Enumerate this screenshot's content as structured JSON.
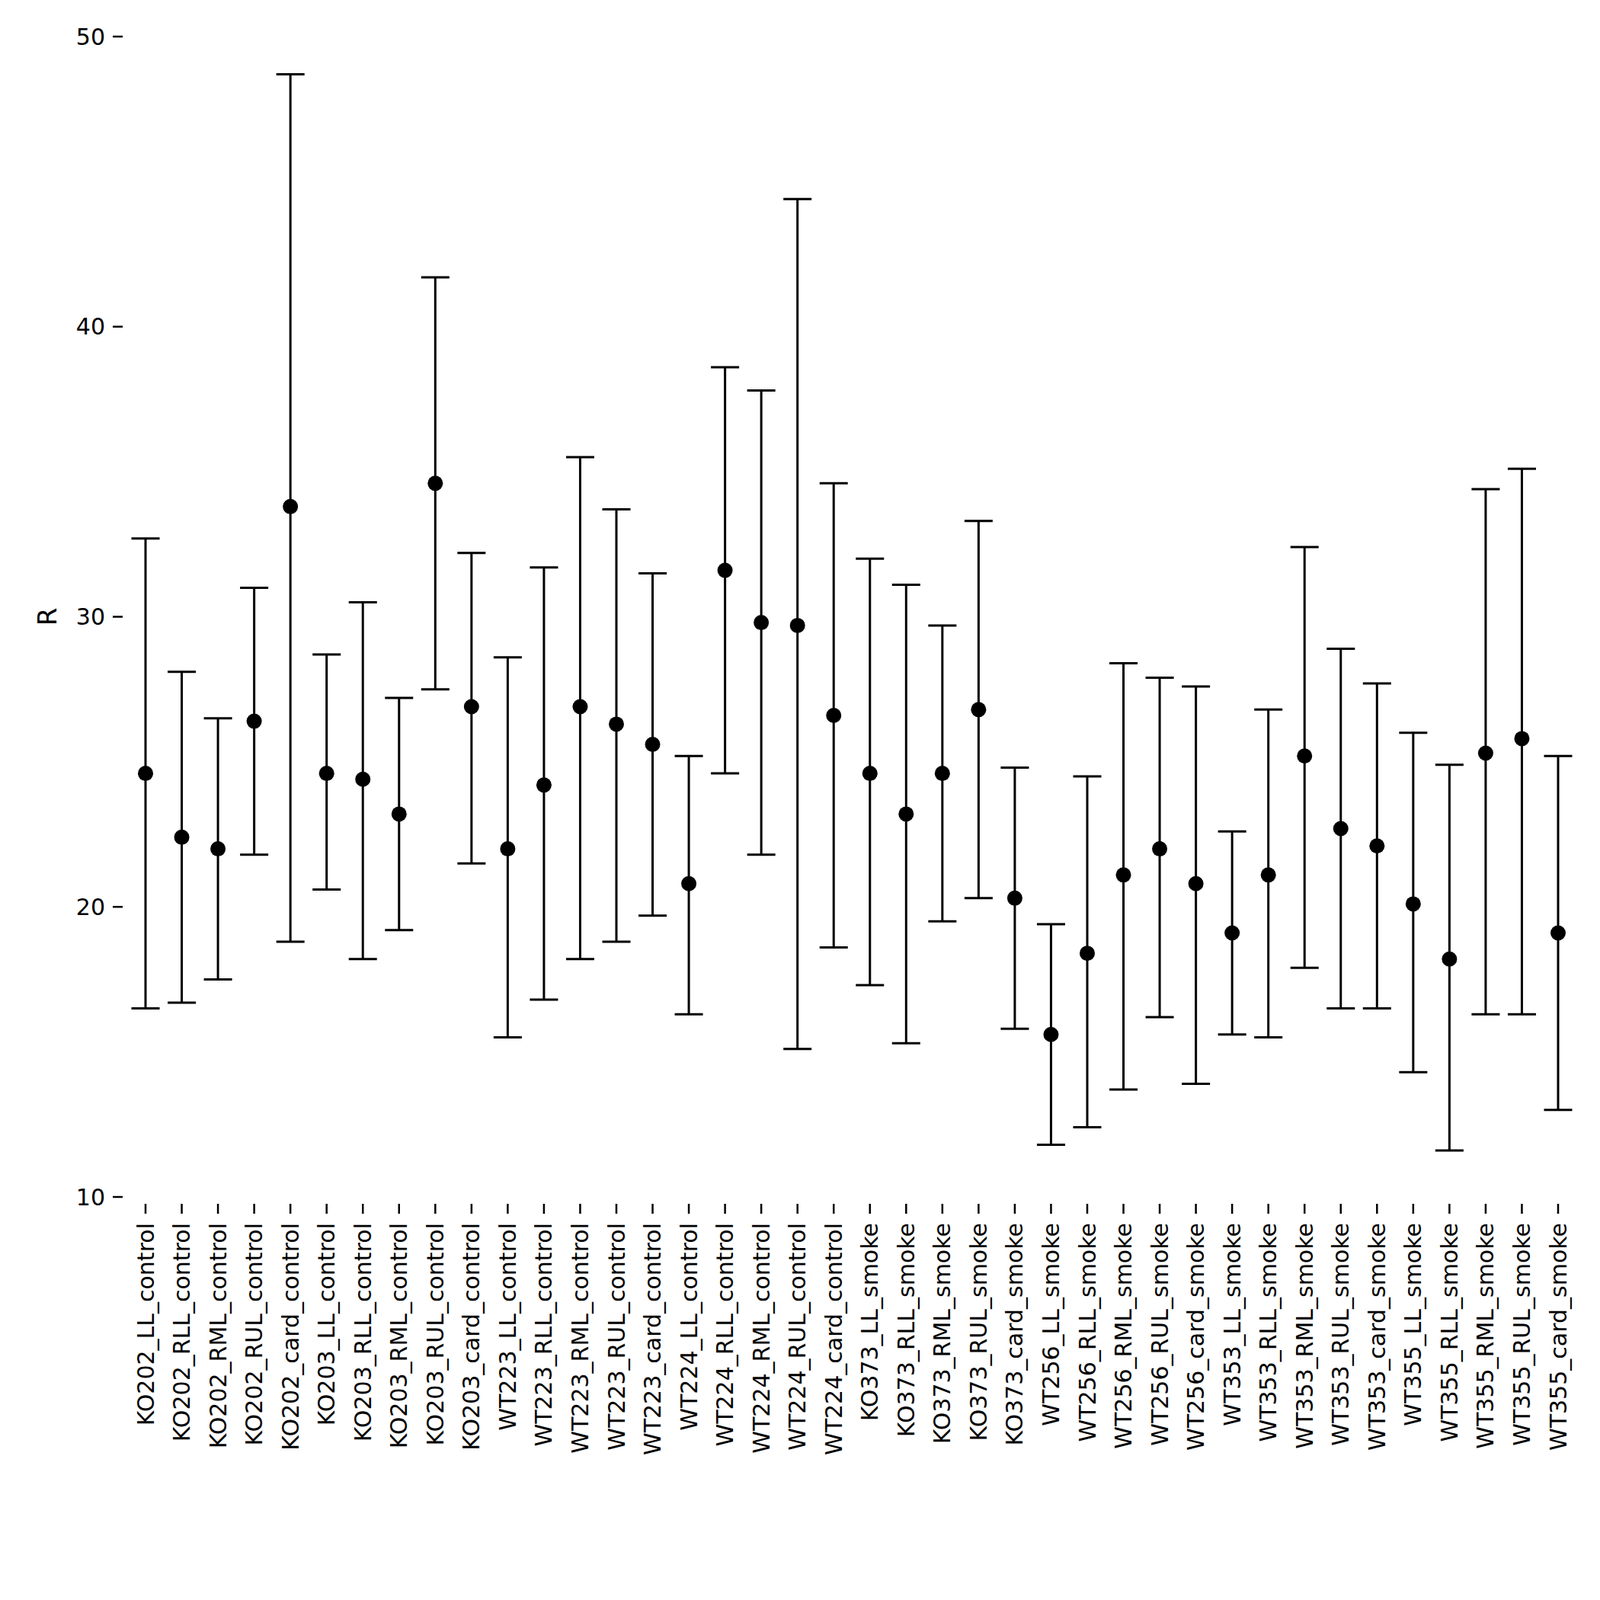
{
  "chart_data": {
    "type": "errorbar",
    "ylabel": "R",
    "categories": [
      "KO202_LL_control",
      "KO202_RLL_control",
      "KO202_RML_control",
      "KO202_RUL_control",
      "KO202_card_control",
      "KO203_LL_control",
      "KO203_RLL_control",
      "KO203_RML_control",
      "KO203_RUL_control",
      "KO203_card_control",
      "WT223_LL_control",
      "WT223_RLL_control",
      "WT223_RML_control",
      "WT223_RUL_control",
      "WT223_card_control",
      "WT224_LL_control",
      "WT224_RLL_control",
      "WT224_RML_control",
      "WT224_RUL_control",
      "WT224_card_control",
      "KO373_LL_smoke",
      "KO373_RLL_smoke",
      "KO373_RML_smoke",
      "KO373_RUL_smoke",
      "KO373_card_smoke",
      "WT256_LL_smoke",
      "WT256_RLL_smoke",
      "WT256_RML_smoke",
      "WT256_RUL_smoke",
      "WT256_card_smoke",
      "WT353_LL_smoke",
      "WT353_RLL_smoke",
      "WT353_RML_smoke",
      "WT353_RUL_smoke",
      "WT353_card_smoke",
      "WT355_LL_smoke",
      "WT355_RLL_smoke",
      "WT355_RML_smoke",
      "WT355_RUL_smoke",
      "WT355_card_smoke"
    ],
    "values": [
      24.6,
      22.4,
      22.0,
      26.4,
      33.8,
      24.6,
      24.4,
      23.2,
      34.6,
      26.9,
      22.0,
      24.2,
      26.9,
      26.3,
      25.6,
      20.8,
      31.6,
      29.8,
      29.7,
      26.6,
      24.6,
      23.2,
      24.6,
      26.8,
      20.3,
      15.6,
      18.4,
      21.1,
      22.0,
      20.8,
      19.1,
      21.1,
      25.2,
      22.7,
      22.1,
      20.1,
      18.2,
      25.3,
      25.8,
      19.1
    ],
    "lower": [
      16.5,
      16.7,
      17.5,
      21.8,
      18.8,
      20.6,
      18.2,
      19.2,
      27.5,
      21.5,
      15.5,
      16.8,
      18.2,
      18.8,
      19.7,
      16.3,
      24.6,
      21.8,
      15.1,
      18.6,
      17.3,
      15.3,
      19.5,
      20.3,
      15.8,
      11.8,
      12.4,
      13.7,
      16.2,
      13.9,
      15.6,
      15.5,
      17.9,
      16.5,
      16.5,
      14.3,
      11.6,
      16.3,
      16.3,
      13.0
    ],
    "upper": [
      32.7,
      28.1,
      26.5,
      31.0,
      48.7,
      28.7,
      30.5,
      27.2,
      41.7,
      32.2,
      28.6,
      31.7,
      35.5,
      33.7,
      31.5,
      25.2,
      38.6,
      37.8,
      44.4,
      34.6,
      32.0,
      31.1,
      29.7,
      33.3,
      24.8,
      19.4,
      24.5,
      28.4,
      27.9,
      27.6,
      22.6,
      26.8,
      32.4,
      28.9,
      27.7,
      26.0,
      24.9,
      34.4,
      35.1,
      25.2
    ],
    "color": "#000000",
    "ylim": [
      10,
      50
    ],
    "yticks": [
      10,
      20,
      30,
      40,
      50
    ]
  }
}
